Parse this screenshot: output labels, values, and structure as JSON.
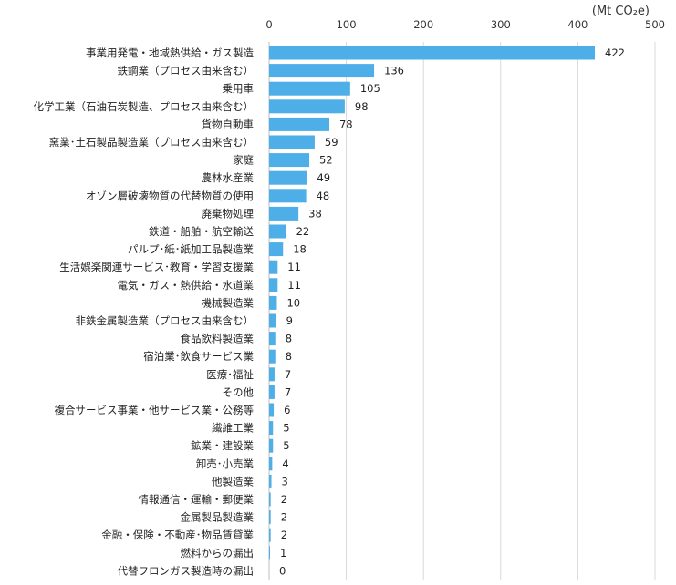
{
  "chart_data": {
    "type": "bar",
    "orientation": "horizontal",
    "unit": "(Mt CO₂e)",
    "xlim": [
      0,
      500
    ],
    "xticks": [
      0,
      100,
      200,
      300,
      400,
      500
    ],
    "grid": true,
    "bar_color": "#4DAEE8",
    "gridline_color": "#d9d9d9",
    "categories": [
      "事業用発電・地域熱供給・ガス製造",
      "鉄鋼業（プロセス由来含む）",
      "乗用車",
      "化学工業（石油石炭製造、プロセス由来含む）",
      "貨物自動車",
      "窯業･土石製品製造業（プロセス由来含む）",
      "家庭",
      "農林水産業",
      "オゾン層破壊物質の代替物質の使用",
      "廃棄物処理",
      "鉄道・船舶・航空輸送",
      "パルプ･紙･紙加工品製造業",
      "生活娯楽関連サービス･教育・学習支援業",
      "電気・ガス・熱供給・水道業",
      "機械製造業",
      "非鉄金属製造業（プロセス由来含む）",
      "食品飲料製造業",
      "宿泊業･飲食サービス業",
      "医療･福祉",
      "その他",
      "複合サービス事業・他サービス業・公務等",
      "繊維工業",
      "鉱業・建設業",
      "卸売･小売業",
      "他製造業",
      "情報通信・運輸・郵便業",
      "金属製品製造業",
      "金融・保険・不動産･物品賃貸業",
      "燃料からの漏出",
      "代替フロンガス製造時の漏出"
    ],
    "values": [
      422,
      136,
      105,
      98,
      78,
      59,
      52,
      49,
      48,
      38,
      22,
      18,
      11,
      11,
      10,
      9,
      8,
      8,
      7,
      7,
      6,
      5,
      5,
      4,
      3,
      2,
      2,
      2,
      1,
      0
    ]
  }
}
